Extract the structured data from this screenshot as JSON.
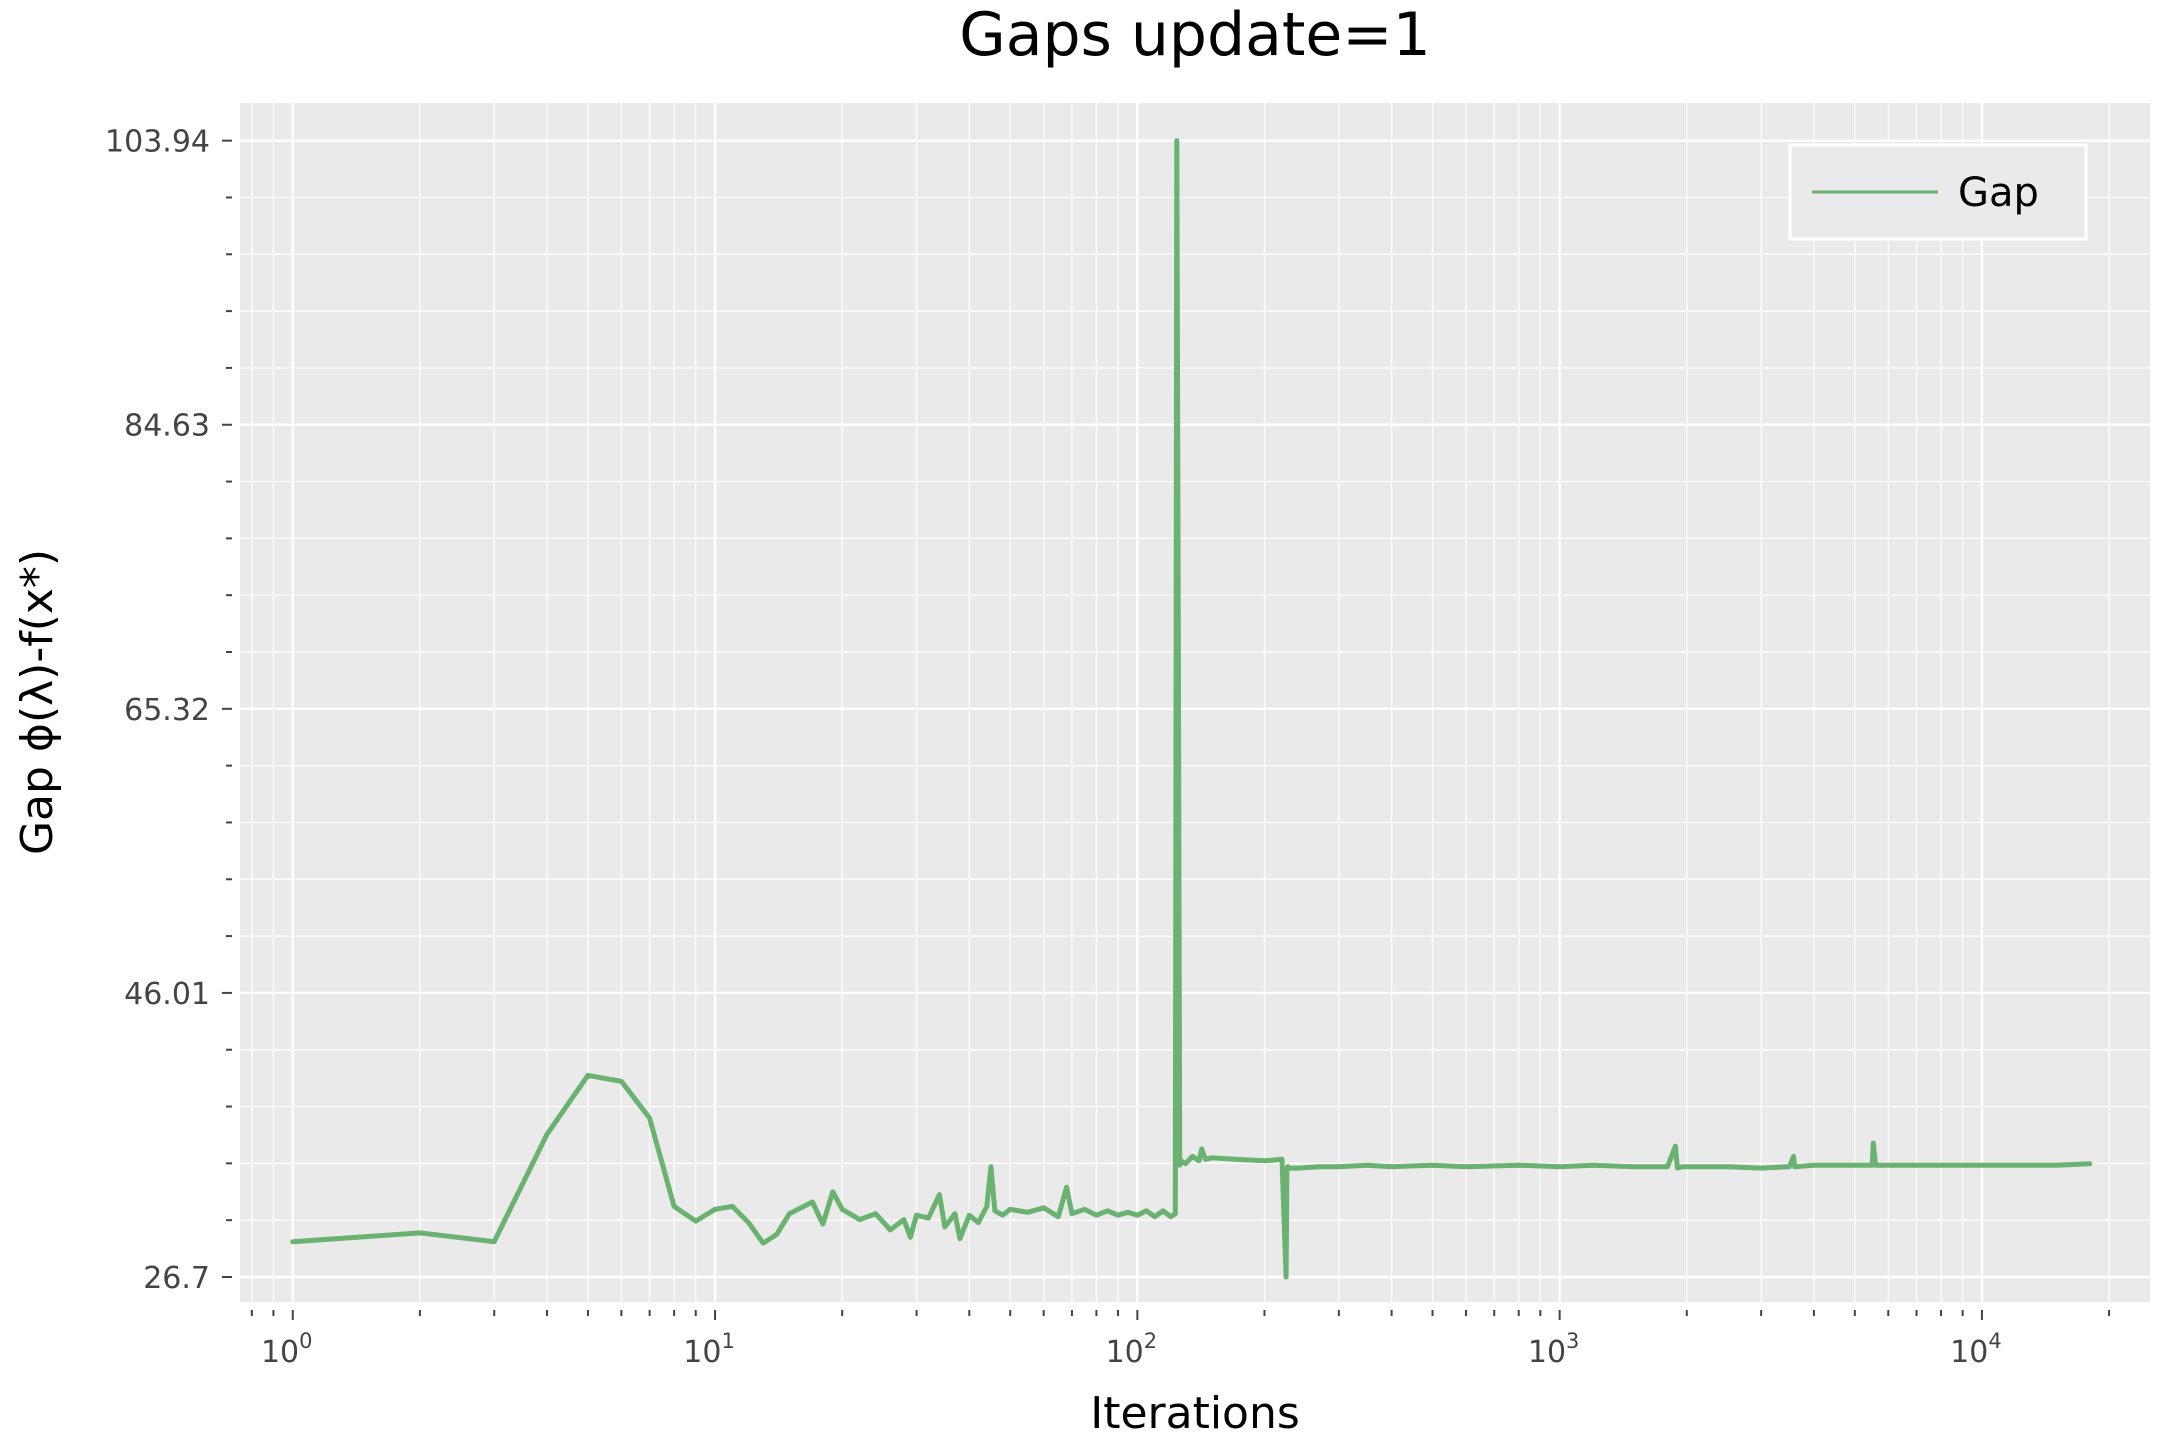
{
  "chart_data": {
    "type": "line",
    "title": "Gaps update=1",
    "xlabel": "Iterations",
    "ylabel": "Gap ϕ(λ)-f(x*)",
    "xscale": "log",
    "xlim": [
      0.75,
      25000
    ],
    "ylim": [
      25.0,
      106.5
    ],
    "x_ticks": [
      {
        "value": 1,
        "base": "10",
        "exp": "0"
      },
      {
        "value": 10,
        "base": "10",
        "exp": "1"
      },
      {
        "value": 100,
        "base": "10",
        "exp": "2"
      },
      {
        "value": 1000,
        "base": "10",
        "exp": "3"
      },
      {
        "value": 10000,
        "base": "10",
        "exp": "4"
      }
    ],
    "y_ticks": [
      {
        "value": 26.7,
        "label": "26.7"
      },
      {
        "value": 46.01,
        "label": "46.01"
      },
      {
        "value": 65.32,
        "label": "65.32"
      },
      {
        "value": 84.63,
        "label": "84.63"
      },
      {
        "value": 103.94,
        "label": "103.94"
      }
    ],
    "grid": true,
    "legend_position": "top-right",
    "series": [
      {
        "name": "Gap",
        "color": "#6ab26f",
        "x": [
          1,
          2,
          3,
          4,
          5,
          6,
          7,
          8,
          9,
          10,
          11,
          12,
          13,
          14,
          15,
          17,
          18,
          19,
          20,
          22,
          24,
          26,
          28,
          29,
          30,
          32,
          34,
          35,
          37,
          38,
          40,
          42,
          44,
          45,
          46,
          48,
          50,
          55,
          60,
          65,
          68,
          70,
          75,
          80,
          85,
          90,
          95,
          100,
          105,
          110,
          115,
          120,
          123,
          124,
          125,
          126,
          127,
          130,
          135,
          140,
          142,
          145,
          150,
          170,
          200,
          220,
          225,
          226,
          227,
          229,
          240,
          270,
          300,
          350,
          400,
          500,
          600,
          800,
          1000,
          1200,
          1500,
          1800,
          1880,
          1900,
          1950,
          2500,
          3000,
          3500,
          3580,
          3600,
          4000,
          5000,
          5500,
          5530,
          5600,
          7000,
          10000,
          15000,
          18000
        ],
        "y": [
          29.1,
          29.7,
          29.1,
          36.4,
          40.4,
          40.0,
          37.5,
          31.5,
          30.5,
          31.3,
          31.5,
          30.4,
          29.0,
          29.6,
          31.0,
          31.8,
          30.3,
          32.5,
          31.3,
          30.6,
          31.0,
          29.9,
          30.6,
          29.4,
          30.9,
          30.7,
          32.3,
          30.1,
          31.0,
          29.3,
          30.9,
          30.4,
          31.5,
          34.2,
          31.2,
          30.9,
          31.3,
          31.1,
          31.4,
          30.8,
          32.8,
          31.0,
          31.3,
          30.9,
          31.2,
          30.9,
          31.1,
          30.9,
          31.2,
          30.8,
          31.2,
          30.8,
          31.0,
          103.94,
          71.0,
          34.3,
          34.6,
          34.4,
          34.9,
          34.6,
          35.4,
          34.7,
          34.8,
          34.7,
          34.6,
          34.7,
          26.7,
          34.0,
          34.2,
          34.1,
          34.1,
          34.2,
          34.2,
          34.3,
          34.2,
          34.3,
          34.2,
          34.3,
          34.2,
          34.3,
          34.2,
          34.2,
          35.6,
          34.1,
          34.2,
          34.2,
          34.1,
          34.2,
          34.9,
          34.2,
          34.3,
          34.3,
          34.3,
          35.8,
          34.3,
          34.3,
          34.3,
          34.3,
          34.4
        ]
      }
    ]
  }
}
